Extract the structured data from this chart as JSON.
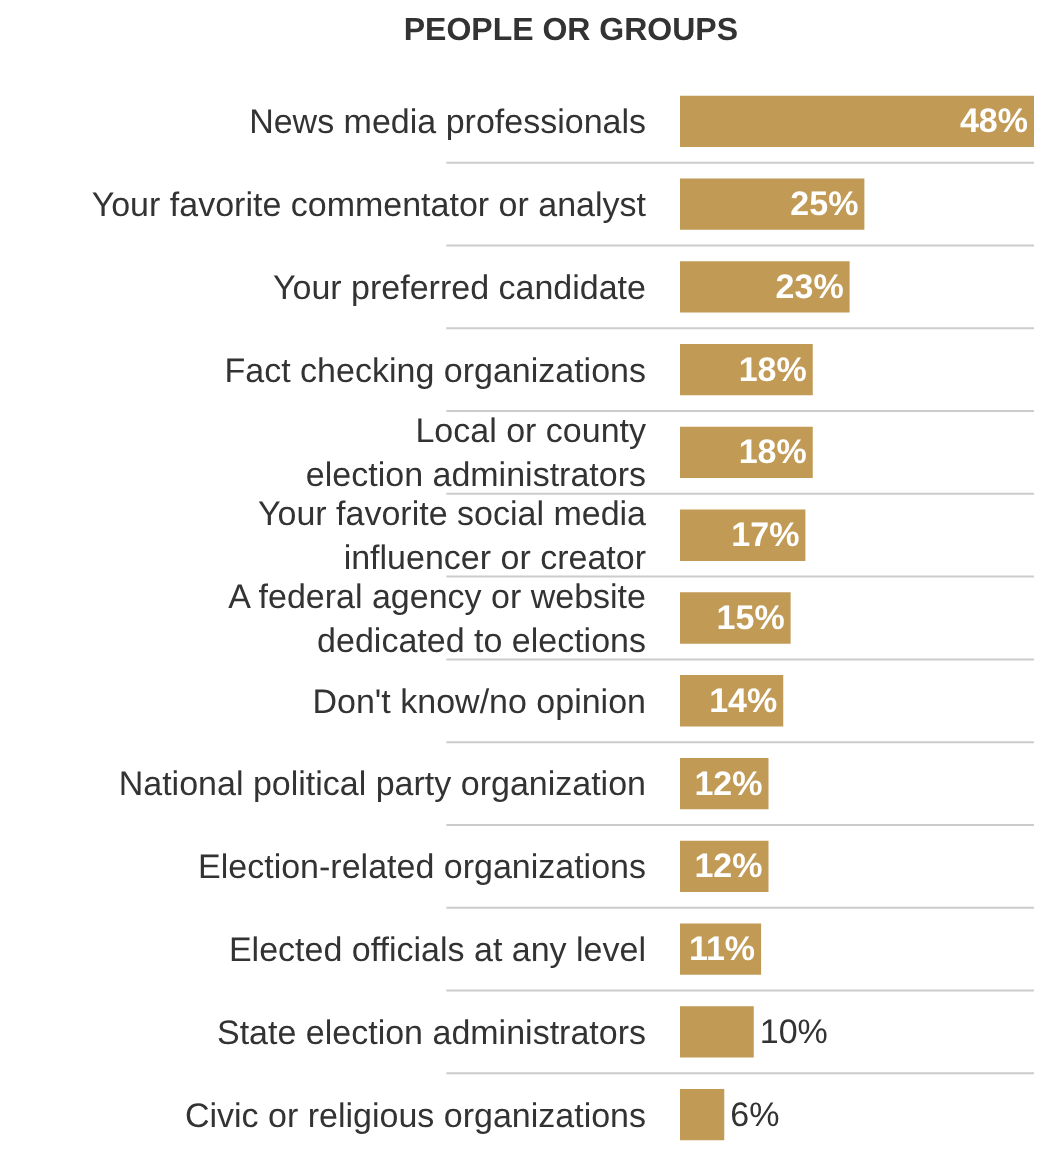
{
  "chart_data": {
    "type": "bar",
    "orientation": "horizontal",
    "title": "PEOPLE OR GROUPS",
    "categories": [
      "News media professionals",
      "Your favorite commentator or analyst",
      "Your preferred candidate",
      "Fact checking organizations",
      "Local or county\nelection administrators",
      "Your favorite social media\ninfluencer or creator",
      "A federal agency or website\ndedicated to elections",
      "Don't know/no opinion",
      "National political party organization",
      "Election-related organizations",
      "Elected officials at any level",
      "State election administrators",
      "Civic or religious organizations"
    ],
    "values": [
      48,
      25,
      23,
      18,
      18,
      17,
      15,
      14,
      12,
      12,
      11,
      10,
      6
    ],
    "value_labels": [
      "48%",
      "25%",
      "23%",
      "18%",
      "18%",
      "17%",
      "15%",
      "14%",
      "12%",
      "12%",
      "11%",
      "10%",
      "6%"
    ],
    "color": "#c19a55",
    "tick_labels": "y"
  }
}
